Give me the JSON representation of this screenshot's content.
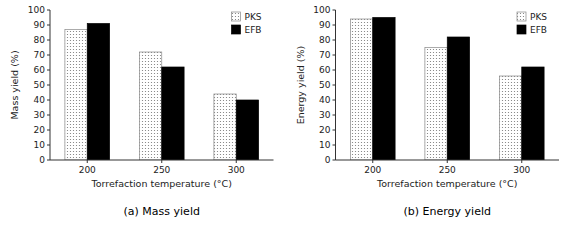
{
  "chart_data": [
    {
      "type": "bar",
      "caption": "(a)  Mass yield",
      "x_label": "Torrefaction temperature (°C)",
      "y_label": "Mass yield (%)",
      "categories": [
        "200",
        "250",
        "300"
      ],
      "series": [
        {
          "name": "PKS",
          "color": "#ffffff",
          "values": [
            87,
            72,
            44
          ]
        },
        {
          "name": "EFB",
          "color": "#000000",
          "values": [
            91,
            62,
            40
          ]
        }
      ],
      "ylim": [
        0,
        100
      ],
      "yticks": [
        0,
        10,
        20,
        30,
        40,
        50,
        60,
        70,
        80,
        90,
        100
      ],
      "grid": false,
      "legend": "upper right"
    },
    {
      "type": "bar",
      "caption": "(b)  Energy yield",
      "x_label": "Torrefaction temperature (°C)",
      "y_label": "Energy yield (%)",
      "categories": [
        "200",
        "250",
        "300"
      ],
      "series": [
        {
          "name": "PKS",
          "color": "#ffffff",
          "values": [
            94,
            75,
            56
          ]
        },
        {
          "name": "EFB",
          "color": "#000000",
          "values": [
            95,
            82,
            62
          ]
        }
      ],
      "ylim": [
        0,
        100
      ],
      "yticks": [
        0,
        10,
        20,
        30,
        40,
        50,
        60,
        70,
        80,
        90,
        100
      ],
      "grid": false,
      "legend": "upper right"
    }
  ]
}
